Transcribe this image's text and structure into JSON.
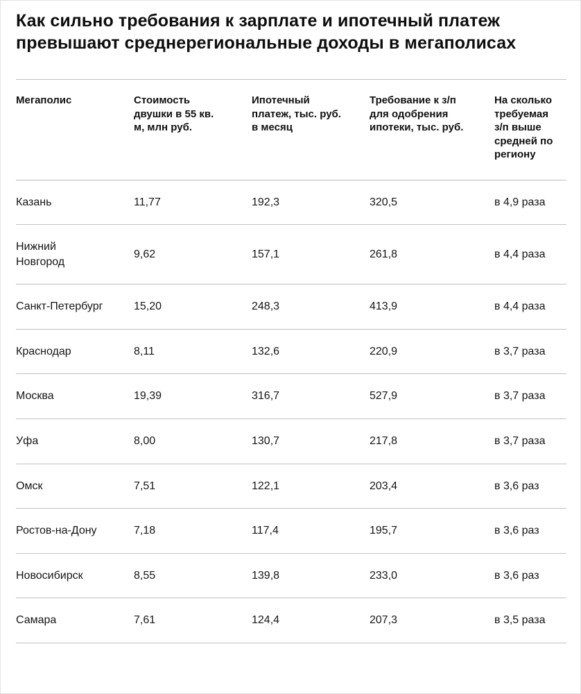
{
  "title": "Как сильно требования к зарплате и ипотечный платеж превышают среднерегиональные доходы в мегаполисах",
  "colors": {
    "text": "#111111",
    "rule_line": "#c2c2c2",
    "background": "#ffffff"
  },
  "chart_data": {
    "type": "table",
    "title": "Как сильно требования к зарплате и ипотечный платеж превышают среднерегиональные доходы в мегаполисах",
    "columns": [
      "Мегаполис",
      "Стоимость двушки в 55 кв. м, млн руб.",
      "Ипотечный платеж, тыс. руб. в месяц",
      "Требование к з/п для одобрения ипотеки, тыс. руб.",
      "На сколько требуемая з/п выше средней по региону"
    ],
    "rows": [
      [
        "Казань",
        "11,77",
        "192,3",
        "320,5",
        "в 4,9 раза"
      ],
      [
        "Нижний Новгород",
        "9,62",
        "157,1",
        "261,8",
        "в 4,4 раза"
      ],
      [
        "Санкт-Петербург",
        "15,20",
        "248,3",
        "413,9",
        "в 4,4 раза"
      ],
      [
        "Краснодар",
        "8,11",
        "132,6",
        "220,9",
        "в 3,7 раза"
      ],
      [
        "Москва",
        "19,39",
        "316,7",
        "527,9",
        "в 3,7 раза"
      ],
      [
        "Уфа",
        "8,00",
        "130,7",
        "217,8",
        "в 3,7 раза"
      ],
      [
        "Омск",
        "7,51",
        "122,1",
        "203,4",
        "в 3,6 раз"
      ],
      [
        "Ростов-на-Дону",
        "7,18",
        "117,4",
        "195,7",
        "в 3,6 раз"
      ],
      [
        "Новосибирск",
        "8,55",
        "139,8",
        "233,0",
        "в 3,6 раз"
      ],
      [
        "Самара",
        "7,61",
        "124,4",
        "207,3",
        "в 3,5 раза"
      ]
    ]
  }
}
